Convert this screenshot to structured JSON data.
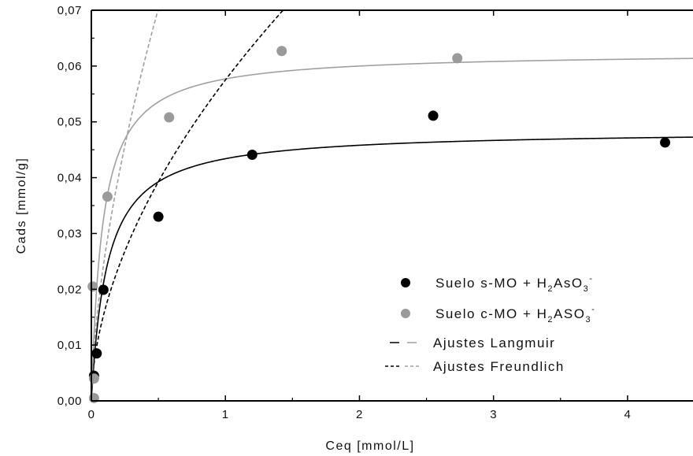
{
  "chart_data": {
    "type": "scatter",
    "xlabel": "Ceq [mmol/L]",
    "ylabel": "Cads [mmol/g]",
    "xlim": [
      0,
      4.5
    ],
    "ylim": [
      0,
      0.07
    ],
    "x_ticks": [
      "0",
      "1",
      "2",
      "3",
      "4"
    ],
    "y_ticks": [
      "0,00",
      "0,01",
      "0,02",
      "0,03",
      "0,04",
      "0,05",
      "0,06",
      "0,07"
    ],
    "x_tick_values": [
      0,
      1,
      2,
      3,
      4
    ],
    "y_tick_values": [
      0,
      0.01,
      0.02,
      0.03,
      0.04,
      0.05,
      0.06,
      0.07
    ],
    "grid": false,
    "legend_position": "bottom-right",
    "series": [
      {
        "name": "Suelo s-MO + H2AsO3-",
        "legend_main": "Suelo s-MO + H",
        "legend_sub": "2",
        "legend_mid": "AsO",
        "legend_sub2": "3",
        "legend_sup": "-",
        "color": "#000000",
        "x": [
          0.02,
          0.04,
          0.09,
          0.5,
          1.2,
          2.55,
          4.28
        ],
        "y": [
          0.0045,
          0.0085,
          0.0199,
          0.033,
          0.0441,
          0.0511,
          0.0463
        ]
      },
      {
        "name": "Suelo c-MO + H2ASO3-",
        "legend_main": "Suelo c-MO + H",
        "legend_sub": "2",
        "legend_mid": "ASO",
        "legend_sub2": "3",
        "legend_sup": "-",
        "color": "#9a9a9a",
        "x": [
          0.02,
          0.02,
          0.01,
          0.12,
          0.58,
          1.42,
          2.73
        ],
        "y": [
          0.0005,
          0.004,
          0.0205,
          0.0366,
          0.0508,
          0.0627,
          0.0614
        ]
      }
    ],
    "fits": [
      {
        "name": "Ajustes Langmuir",
        "model": "langmuir",
        "qmax": 0.0485,
        "K": 8.5,
        "color": "#000000",
        "dash": "solid",
        "series": 0
      },
      {
        "name": "Ajustes Langmuir",
        "model": "langmuir",
        "qmax": 0.0625,
        "K": 12.0,
        "color": "#a0a0a0",
        "dash": "solid",
        "series": 1
      },
      {
        "name": "Ajustes Freundlich",
        "model": "freundlich",
        "Kf": 0.0575,
        "n": 0.55,
        "color": "#000000",
        "dash": "dashed",
        "series": 0
      },
      {
        "name": "Ajustes Freundlich",
        "model": "freundlich",
        "Kf": 0.108,
        "n": 0.62,
        "color": "#a0a0a0",
        "dash": "dashed",
        "series": 1
      }
    ],
    "legend_fit_entries": [
      "Ajustes Langmuir",
      "Ajustes Freundlich"
    ]
  }
}
